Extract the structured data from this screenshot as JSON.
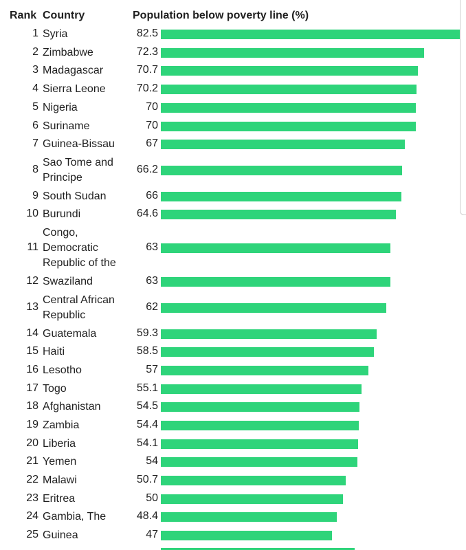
{
  "header": {
    "rank": "Rank",
    "country": "Country",
    "metric": "Population below poverty line (%)"
  },
  "chart_data": {
    "type": "bar",
    "orientation": "horizontal",
    "xlim": [
      0,
      82.5
    ],
    "grid": false,
    "legend": "none",
    "bar_color": "#2ed47a",
    "rows": [
      {
        "rank": "1",
        "country": "Syria",
        "value": 82.5,
        "label": "82.5"
      },
      {
        "rank": "2",
        "country": "Zimbabwe",
        "value": 72.3,
        "label": "72.3"
      },
      {
        "rank": "3",
        "country": "Madagascar",
        "value": 70.7,
        "label": "70.7"
      },
      {
        "rank": "4",
        "country": "Sierra Leone",
        "value": 70.2,
        "label": "70.2"
      },
      {
        "rank": "5",
        "country": "Nigeria",
        "value": 70,
        "label": "70"
      },
      {
        "rank": "6",
        "country": "Suriname",
        "value": 70,
        "label": "70"
      },
      {
        "rank": "7",
        "country": "Guinea-Bissau",
        "value": 67,
        "label": "67"
      },
      {
        "rank": "8",
        "country": "Sao Tome and Principe",
        "value": 66.2,
        "label": "66.2"
      },
      {
        "rank": "9",
        "country": "South Sudan",
        "value": 66,
        "label": "66"
      },
      {
        "rank": "10",
        "country": "Burundi",
        "value": 64.6,
        "label": "64.6"
      },
      {
        "rank": "11",
        "country": "Congo, Democratic Republic of the",
        "value": 63,
        "label": "63"
      },
      {
        "rank": "12",
        "country": "Swaziland",
        "value": 63,
        "label": "63"
      },
      {
        "rank": "13",
        "country": "Central African Republic",
        "value": 62,
        "label": "62"
      },
      {
        "rank": "14",
        "country": "Guatemala",
        "value": 59.3,
        "label": "59.3"
      },
      {
        "rank": "15",
        "country": "Haiti",
        "value": 58.5,
        "label": "58.5"
      },
      {
        "rank": "16",
        "country": "Lesotho",
        "value": 57,
        "label": "57"
      },
      {
        "rank": "17",
        "country": "Togo",
        "value": 55.1,
        "label": "55.1"
      },
      {
        "rank": "18",
        "country": "Afghanistan",
        "value": 54.5,
        "label": "54.5"
      },
      {
        "rank": "19",
        "country": "Zambia",
        "value": 54.4,
        "label": "54.4"
      },
      {
        "rank": "20",
        "country": "Liberia",
        "value": 54.1,
        "label": "54.1"
      },
      {
        "rank": "21",
        "country": "Yemen",
        "value": 54,
        "label": "54"
      },
      {
        "rank": "22",
        "country": "Malawi",
        "value": 50.7,
        "label": "50.7"
      },
      {
        "rank": "23",
        "country": "Eritrea",
        "value": 50,
        "label": "50"
      },
      {
        "rank": "24",
        "country": "Gambia, The",
        "value": 48.4,
        "label": "48.4"
      },
      {
        "rank": "25",
        "country": "Guinea",
        "value": 47,
        "label": "47"
      }
    ]
  }
}
